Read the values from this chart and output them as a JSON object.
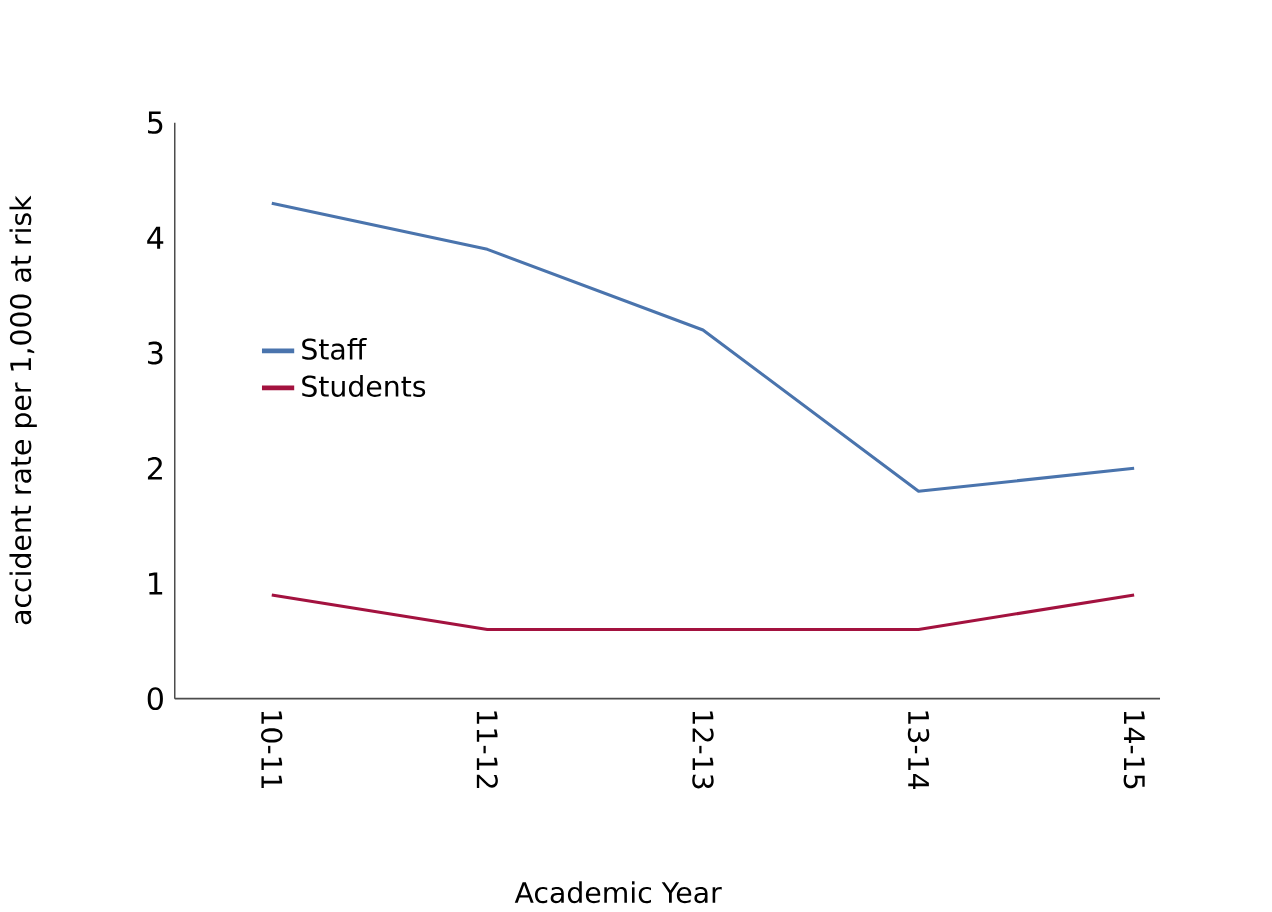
{
  "chart_data": {
    "type": "line",
    "xlabel": "Academic Year",
    "ylabel": "accident rate per 1,000 at risk",
    "categories": [
      "10-11",
      "11-12",
      "12-13",
      "13-14",
      "14-15"
    ],
    "series": [
      {
        "name": "Staff",
        "color": "#4a74ad",
        "values": [
          4.3,
          3.9,
          3.2,
          1.8,
          2.0
        ]
      },
      {
        "name": "Students",
        "color": "#a3123f",
        "values": [
          0.9,
          0.6,
          0.6,
          0.6,
          0.9
        ]
      }
    ],
    "ylim": [
      0,
      5
    ],
    "yticks": [
      0,
      1,
      2,
      3,
      4,
      5
    ],
    "grid": false,
    "legend": "left",
    "marker": "none",
    "line_style": "solid"
  }
}
